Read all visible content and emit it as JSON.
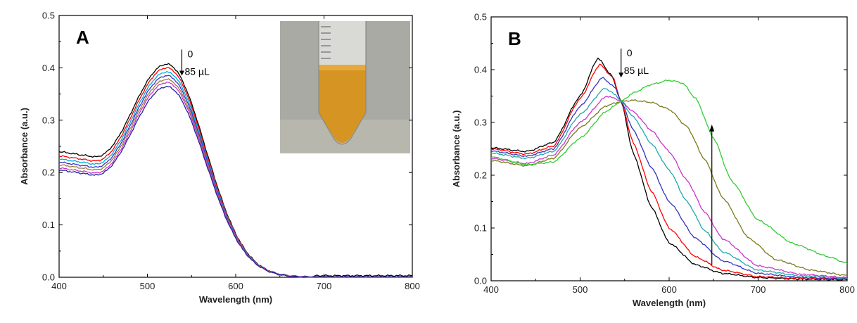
{
  "chart_data": [
    {
      "type": "line",
      "panel_label": "A",
      "xlabel": "Wavelength (nm)",
      "ylabel": "Absorbance (a.u.)",
      "xlim": [
        400,
        800
      ],
      "ylim": [
        0.0,
        0.5
      ],
      "xticks": [
        400,
        500,
        600,
        700,
        800
      ],
      "yticks": [
        0.0,
        0.1,
        0.2,
        0.3,
        0.4,
        0.5
      ],
      "xtick_labels": [
        "400",
        "500",
        "600",
        "700",
        "800"
      ],
      "ytick_labels": [
        "0.0",
        "0.1",
        "0.2",
        "0.3",
        "0.4",
        "0.5"
      ],
      "grid": false,
      "annotation": {
        "top": "0",
        "bottom": "85 µL"
      },
      "has_inset_photo": true,
      "series": [
        {
          "color": "#000000",
          "peak": 0.407,
          "base": 0.24,
          "tail": 0.003
        },
        {
          "color": "#ff0000",
          "peak": 0.4,
          "base": 0.232,
          "tail": 0.0
        },
        {
          "color": "#00aadd",
          "peak": 0.392,
          "base": 0.226,
          "tail": 0.0
        },
        {
          "color": "#3333cc",
          "peak": 0.385,
          "base": 0.22,
          "tail": 0.0
        },
        {
          "color": "#9b7b3a",
          "peak": 0.378,
          "base": 0.215,
          "tail": 0.0
        },
        {
          "color": "#cc33cc",
          "peak": 0.372,
          "base": 0.209,
          "tail": 0.0
        },
        {
          "color": "#22229a",
          "peak": 0.364,
          "base": 0.205,
          "tail": 0.0
        }
      ]
    },
    {
      "type": "line",
      "panel_label": "B",
      "xlabel": "Wavelength (nm)",
      "ylabel": "Absorbance (a.u.)",
      "xlim": [
        400,
        800
      ],
      "ylim": [
        0.0,
        0.5
      ],
      "xticks": [
        400,
        500,
        600,
        700,
        800
      ],
      "yticks": [
        0.0,
        0.1,
        0.2,
        0.3,
        0.4,
        0.5
      ],
      "xtick_labels": [
        "400",
        "500",
        "600",
        "700",
        "800"
      ],
      "ytick_labels": [
        "0.0",
        "0.1",
        "0.2",
        "0.3",
        "0.4",
        "0.5"
      ],
      "grid": false,
      "annotation": {
        "top": "0",
        "bottom": "85 µL"
      },
      "isosbestic_point": [
        546,
        0.34
      ],
      "series": [
        {
          "color": "#000000",
          "points": [
            [
              400,
              0.252
            ],
            [
              440,
              0.245
            ],
            [
              470,
              0.262
            ],
            [
              500,
              0.35
            ],
            [
              520,
              0.422
            ],
            [
              535,
              0.39
            ],
            [
              546,
              0.34
            ],
            [
              560,
              0.24
            ],
            [
              580,
              0.14
            ],
            [
              600,
              0.072
            ],
            [
              630,
              0.03
            ],
            [
              660,
              0.014
            ],
            [
              700,
              0.006
            ],
            [
              750,
              0.003
            ],
            [
              800,
              0.002
            ]
          ]
        },
        {
          "color": "#ff0000",
          "points": [
            [
              400,
              0.25
            ],
            [
              440,
              0.24
            ],
            [
              470,
              0.255
            ],
            [
              500,
              0.345
            ],
            [
              522,
              0.41
            ],
            [
              537,
              0.385
            ],
            [
              546,
              0.34
            ],
            [
              560,
              0.26
            ],
            [
              580,
              0.17
            ],
            [
              600,
              0.1
            ],
            [
              630,
              0.045
            ],
            [
              660,
              0.02
            ],
            [
              700,
              0.008
            ],
            [
              750,
              0.004
            ],
            [
              800,
              0.003
            ]
          ]
        },
        {
          "color": "#3333bb",
          "points": [
            [
              400,
              0.246
            ],
            [
              440,
              0.236
            ],
            [
              470,
              0.25
            ],
            [
              500,
              0.33
            ],
            [
              525,
              0.385
            ],
            [
              540,
              0.365
            ],
            [
              546,
              0.34
            ],
            [
              560,
              0.285
            ],
            [
              580,
              0.215
            ],
            [
              600,
              0.15
            ],
            [
              630,
              0.08
            ],
            [
              660,
              0.038
            ],
            [
              700,
              0.014
            ],
            [
              750,
              0.006
            ],
            [
              800,
              0.004
            ]
          ]
        },
        {
          "color": "#20a8a8",
          "points": [
            [
              400,
              0.242
            ],
            [
              440,
              0.232
            ],
            [
              470,
              0.245
            ],
            [
              500,
              0.315
            ],
            [
              528,
              0.365
            ],
            [
              540,
              0.352
            ],
            [
              546,
              0.34
            ],
            [
              560,
              0.31
            ],
            [
              580,
              0.26
            ],
            [
              600,
              0.21
            ],
            [
              620,
              0.15
            ],
            [
              640,
              0.095
            ],
            [
              660,
              0.055
            ],
            [
              700,
              0.02
            ],
            [
              750,
              0.009
            ],
            [
              800,
              0.005
            ]
          ]
        },
        {
          "color": "#cc33cc",
          "points": [
            [
              400,
              0.232
            ],
            [
              440,
              0.222
            ],
            [
              470,
              0.238
            ],
            [
              500,
              0.3
            ],
            [
              530,
              0.35
            ],
            [
              540,
              0.345
            ],
            [
              546,
              0.34
            ],
            [
              560,
              0.32
            ],
            [
              580,
              0.285
            ],
            [
              600,
              0.245
            ],
            [
              620,
              0.19
            ],
            [
              640,
              0.13
            ],
            [
              660,
              0.08
            ],
            [
              700,
              0.028
            ],
            [
              750,
              0.012
            ],
            [
              800,
              0.006
            ]
          ]
        },
        {
          "color": "#7a7a1a",
          "points": [
            [
              400,
              0.228
            ],
            [
              440,
              0.218
            ],
            [
              470,
              0.232
            ],
            [
              500,
              0.29
            ],
            [
              530,
              0.332
            ],
            [
              546,
              0.34
            ],
            [
              560,
              0.342
            ],
            [
              580,
              0.338
            ],
            [
              600,
              0.325
            ],
            [
              620,
              0.292
            ],
            [
              640,
              0.23
            ],
            [
              660,
              0.158
            ],
            [
              690,
              0.08
            ],
            [
              720,
              0.04
            ],
            [
              760,
              0.02
            ],
            [
              800,
              0.01
            ]
          ]
        },
        {
          "color": "#33cc33",
          "points": [
            [
              400,
              0.235
            ],
            [
              440,
              0.22
            ],
            [
              470,
              0.225
            ],
            [
              500,
              0.27
            ],
            [
              530,
              0.322
            ],
            [
              546,
              0.34
            ],
            [
              560,
              0.356
            ],
            [
              580,
              0.372
            ],
            [
              600,
              0.38
            ],
            [
              615,
              0.375
            ],
            [
              630,
              0.345
            ],
            [
              650,
              0.27
            ],
            [
              670,
              0.19
            ],
            [
              700,
              0.115
            ],
            [
              740,
              0.07
            ],
            [
              780,
              0.045
            ],
            [
              800,
              0.033
            ]
          ]
        }
      ]
    }
  ]
}
